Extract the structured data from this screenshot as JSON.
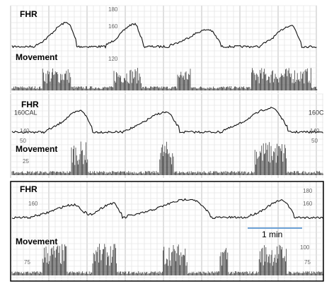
{
  "panels": [
    {
      "fhr_label": "FHR",
      "movement_label": "Movement",
      "scale_labels": [
        "180",
        "160",
        "120"
      ]
    },
    {
      "fhr_label": "FHR",
      "movement_label": "Movement",
      "scale_labels": [
        "160CAL",
        "160C",
        "140",
        "140",
        "50",
        "50",
        "25"
      ]
    },
    {
      "fhr_label": "FHR",
      "movement_label": "Movement",
      "scale_labels": [
        "180",
        "160",
        "160",
        "100",
        "75",
        "75"
      ]
    }
  ],
  "scale_bar": "1 min"
}
